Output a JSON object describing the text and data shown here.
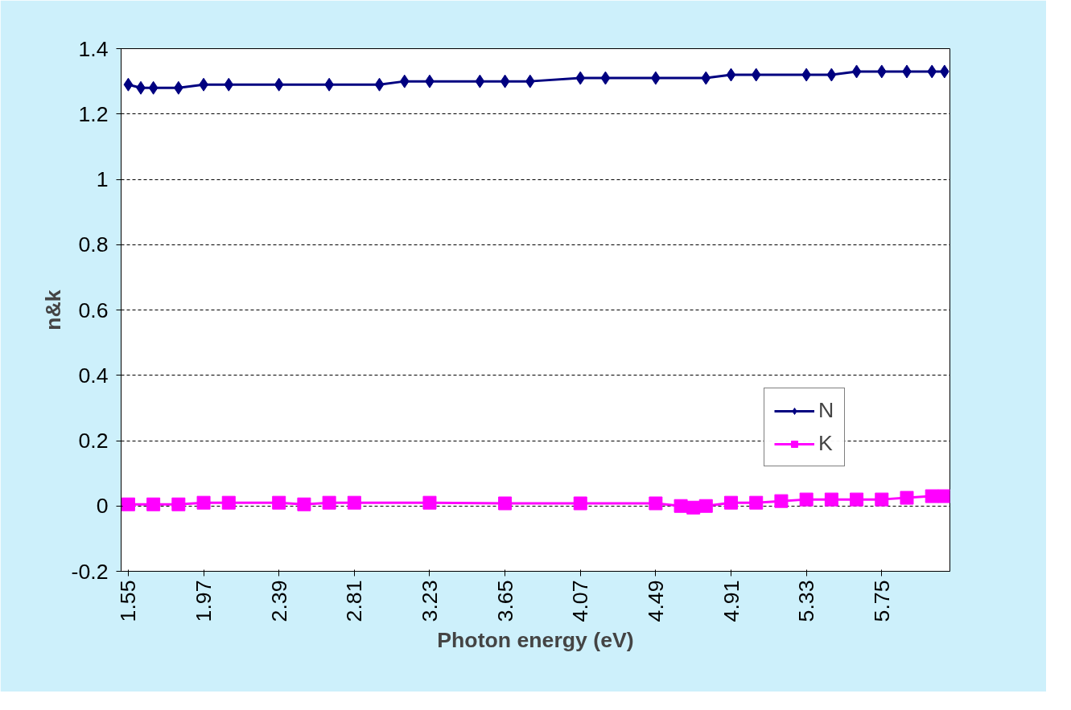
{
  "chart_data": {
    "type": "line",
    "xlabel": "Photon energy (eV)",
    "ylabel": "n&k",
    "xlim": [
      1.51,
      6.13
    ],
    "xticks": [
      1.55,
      1.97,
      2.39,
      2.81,
      3.23,
      3.65,
      4.07,
      4.49,
      4.91,
      5.33,
      5.75
    ],
    "ylim": [
      -0.2,
      1.4
    ],
    "yticks": [
      -0.2,
      0,
      0.2,
      0.4,
      0.6,
      0.8,
      1,
      1.2,
      1.4
    ],
    "grid": "y",
    "legend": "bottom right",
    "series": [
      {
        "name": "N",
        "color": "#000080",
        "marker": "diamond",
        "x": [
          1.55,
          1.62,
          1.69,
          1.83,
          1.97,
          2.11,
          2.39,
          2.67,
          2.95,
          3.09,
          3.23,
          3.51,
          3.65,
          3.79,
          4.07,
          4.21,
          4.49,
          4.77,
          4.91,
          5.05,
          5.33,
          5.47,
          5.61,
          5.75,
          5.89,
          6.03,
          6.1
        ],
        "values": [
          1.29,
          1.28,
          1.28,
          1.28,
          1.29,
          1.29,
          1.29,
          1.29,
          1.29,
          1.3,
          1.3,
          1.3,
          1.3,
          1.3,
          1.31,
          1.31,
          1.31,
          1.31,
          1.32,
          1.32,
          1.32,
          1.32,
          1.33,
          1.33,
          1.33,
          1.33,
          1.33
        ]
      },
      {
        "name": "K",
        "color": "#ff00ff",
        "marker": "square",
        "x": [
          1.55,
          1.69,
          1.83,
          1.97,
          2.11,
          2.39,
          2.53,
          2.67,
          2.81,
          3.23,
          3.65,
          4.07,
          4.49,
          4.63,
          4.7,
          4.77,
          4.91,
          5.05,
          5.19,
          5.33,
          5.47,
          5.61,
          5.75,
          5.89,
          6.03,
          6.1
        ],
        "values": [
          0.005,
          0.005,
          0.005,
          0.01,
          0.01,
          0.01,
          0.005,
          0.01,
          0.01,
          0.01,
          0.008,
          0.008,
          0.008,
          0.0,
          -0.005,
          0.0,
          0.01,
          0.01,
          0.015,
          0.02,
          0.02,
          0.02,
          0.02,
          0.025,
          0.03,
          0.03
        ]
      }
    ]
  }
}
